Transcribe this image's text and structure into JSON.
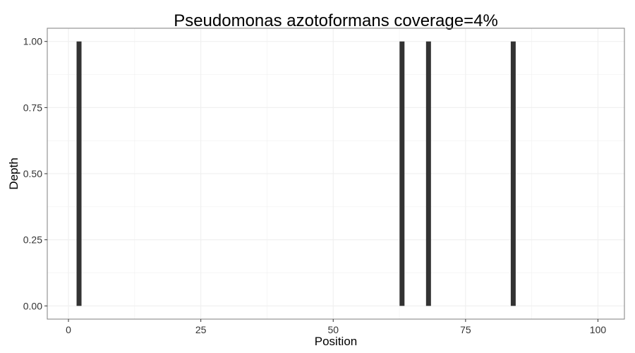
{
  "chart_data": {
    "type": "bar",
    "title": "Pseudomonas azotoformans coverage=4%",
    "xlabel": "Position",
    "ylabel": "Depth",
    "x": [
      2,
      63,
      68,
      84
    ],
    "values": [
      1.0,
      1.0,
      1.0,
      1.0
    ],
    "xlim": [
      -4,
      105
    ],
    "ylim": [
      -0.05,
      1.05
    ],
    "xticks": [
      0,
      25,
      50,
      75,
      100
    ],
    "xtick_labels": [
      "0",
      "25",
      "50",
      "75",
      "100"
    ],
    "yticks": [
      0,
      0.25,
      0.5,
      0.75,
      1.0
    ],
    "ytick_labels": [
      "0.00",
      "0.25",
      "0.50",
      "0.75",
      "1.00"
    ],
    "grid": true,
    "bar_color": "#333333",
    "grid_color": "#f0f0f0",
    "panel_border_color": "#7f7f7f"
  }
}
